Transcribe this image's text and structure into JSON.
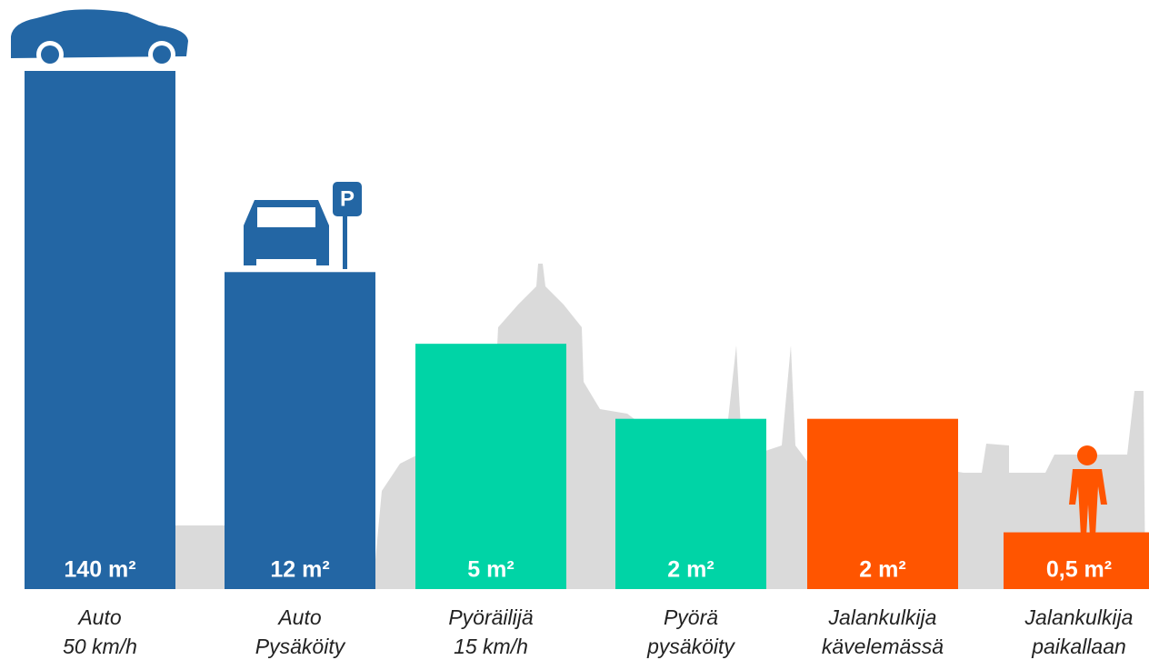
{
  "chart_data": {
    "type": "bar",
    "log_scale": true,
    "categories": [
      [
        "Auto",
        "50 km/h"
      ],
      [
        "Auto",
        "Pysäköity"
      ],
      [
        "Pyöräilijä",
        "15 km/h"
      ],
      [
        "Pyörä",
        "pysäköity"
      ],
      [
        "Jalankulkija",
        "kävelemässä"
      ],
      [
        "Jalankulkija",
        "paikallaan"
      ]
    ],
    "values": [
      140,
      12,
      5,
      2,
      2,
      0.5
    ],
    "value_labels": [
      "140 m²",
      "12 m²",
      "5 m²",
      "2 m²",
      "2 m²",
      "0,5 m²"
    ],
    "colors": [
      "#2366a4",
      "#2366a4",
      "#00d4a6",
      "#00d4a6",
      "#ff5500",
      "#ff5500"
    ],
    "ylim": [
      0.25,
      140
    ]
  }
}
